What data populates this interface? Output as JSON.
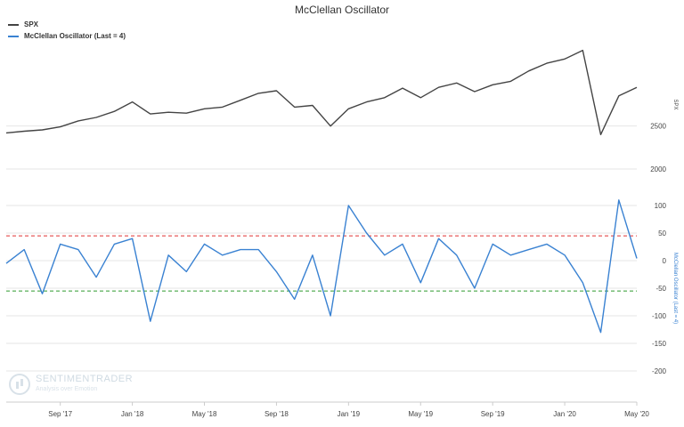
{
  "chart_data": {
    "type": "line",
    "title": "McClellan Oscillator",
    "legend_position": "top-left",
    "grid": true,
    "x_start": "2017-06",
    "x_end": "2020-05",
    "x_ticks": [
      "Sep '17",
      "Jan '18",
      "May '18",
      "Sep '18",
      "Jan '19",
      "May '19",
      "Sep '19",
      "Jan '20",
      "May '20"
    ],
    "panels": [
      {
        "name": "spx",
        "ylabel": "SPX",
        "ylim": [
          2000,
          3500
        ],
        "y_ticks": [
          "2500",
          "2000"
        ],
        "y_tick_values": [
          2500,
          2000
        ],
        "series": [
          {
            "name": "SPX",
            "color": "#444444",
            "points": [
              [
                "2017-06",
                2420
              ],
              [
                "2017-07",
                2440
              ],
              [
                "2017-08",
                2455
              ],
              [
                "2017-09",
                2490
              ],
              [
                "2017-10",
                2560
              ],
              [
                "2017-11",
                2600
              ],
              [
                "2017-12",
                2670
              ],
              [
                "2018-01",
                2780
              ],
              [
                "2018-02",
                2640
              ],
              [
                "2018-03",
                2660
              ],
              [
                "2018-04",
                2650
              ],
              [
                "2018-05",
                2700
              ],
              [
                "2018-06",
                2720
              ],
              [
                "2018-07",
                2800
              ],
              [
                "2018-08",
                2880
              ],
              [
                "2018-09",
                2910
              ],
              [
                "2018-10",
                2720
              ],
              [
                "2018-11",
                2740
              ],
              [
                "2018-12",
                2500
              ],
              [
                "2019-01",
                2700
              ],
              [
                "2019-02",
                2780
              ],
              [
                "2019-03",
                2830
              ],
              [
                "2019-04",
                2940
              ],
              [
                "2019-05",
                2830
              ],
              [
                "2019-06",
                2950
              ],
              [
                "2019-07",
                3000
              ],
              [
                "2019-08",
                2900
              ],
              [
                "2019-09",
                2980
              ],
              [
                "2019-10",
                3020
              ],
              [
                "2019-11",
                3140
              ],
              [
                "2019-12",
                3230
              ],
              [
                "2020-01",
                3280
              ],
              [
                "2020-02",
                3380
              ],
              [
                "2020-03",
                2400
              ],
              [
                "2020-04",
                2850
              ],
              [
                "2020-05",
                2950
              ]
            ]
          }
        ]
      },
      {
        "name": "oscillator",
        "ylabel": "McClellan Oscillator (Last = 4)",
        "ylim": [
          -250,
          150
        ],
        "y_ticks": [
          "100",
          "50",
          "0",
          "-50",
          "-100",
          "-150",
          "-200"
        ],
        "y_tick_values": [
          100,
          50,
          0,
          -50,
          -100,
          -150,
          -200
        ],
        "reference_lines": [
          {
            "value": 45,
            "color": "#e03030"
          },
          {
            "value": -55,
            "color": "#2e9b2e"
          }
        ],
        "series": [
          {
            "name": "McClellan Oscillator (Last = 4)",
            "color": "#3a82d2",
            "points": [
              [
                "2017-06",
                -5
              ],
              [
                "2017-07",
                20
              ],
              [
                "2017-08",
                -60
              ],
              [
                "2017-09",
                30
              ],
              [
                "2017-10",
                20
              ],
              [
                "2017-11",
                -30
              ],
              [
                "2017-12",
                30
              ],
              [
                "2018-01",
                40
              ],
              [
                "2018-02",
                -110
              ],
              [
                "2018-03",
                10
              ],
              [
                "2018-04",
                -20
              ],
              [
                "2018-05",
                30
              ],
              [
                "2018-06",
                10
              ],
              [
                "2018-07",
                20
              ],
              [
                "2018-08",
                20
              ],
              [
                "2018-09",
                -20
              ],
              [
                "2018-10",
                -70
              ],
              [
                "2018-11",
                10
              ],
              [
                "2018-12",
                -100
              ],
              [
                "2019-01",
                100
              ],
              [
                "2019-02",
                50
              ],
              [
                "2019-03",
                10
              ],
              [
                "2019-04",
                30
              ],
              [
                "2019-05",
                -40
              ],
              [
                "2019-06",
                40
              ],
              [
                "2019-07",
                10
              ],
              [
                "2019-08",
                -50
              ],
              [
                "2019-09",
                30
              ],
              [
                "2019-10",
                10
              ],
              [
                "2019-11",
                20
              ],
              [
                "2019-12",
                30
              ],
              [
                "2020-01",
                10
              ],
              [
                "2020-02",
                -40
              ],
              [
                "2020-03",
                -130
              ],
              [
                "2020-04",
                110
              ],
              [
                "2020-05",
                4
              ]
            ]
          }
        ]
      }
    ]
  },
  "watermark": {
    "brand": "SENTIMENTRADER",
    "tagline": "Analysis over Emotion"
  }
}
